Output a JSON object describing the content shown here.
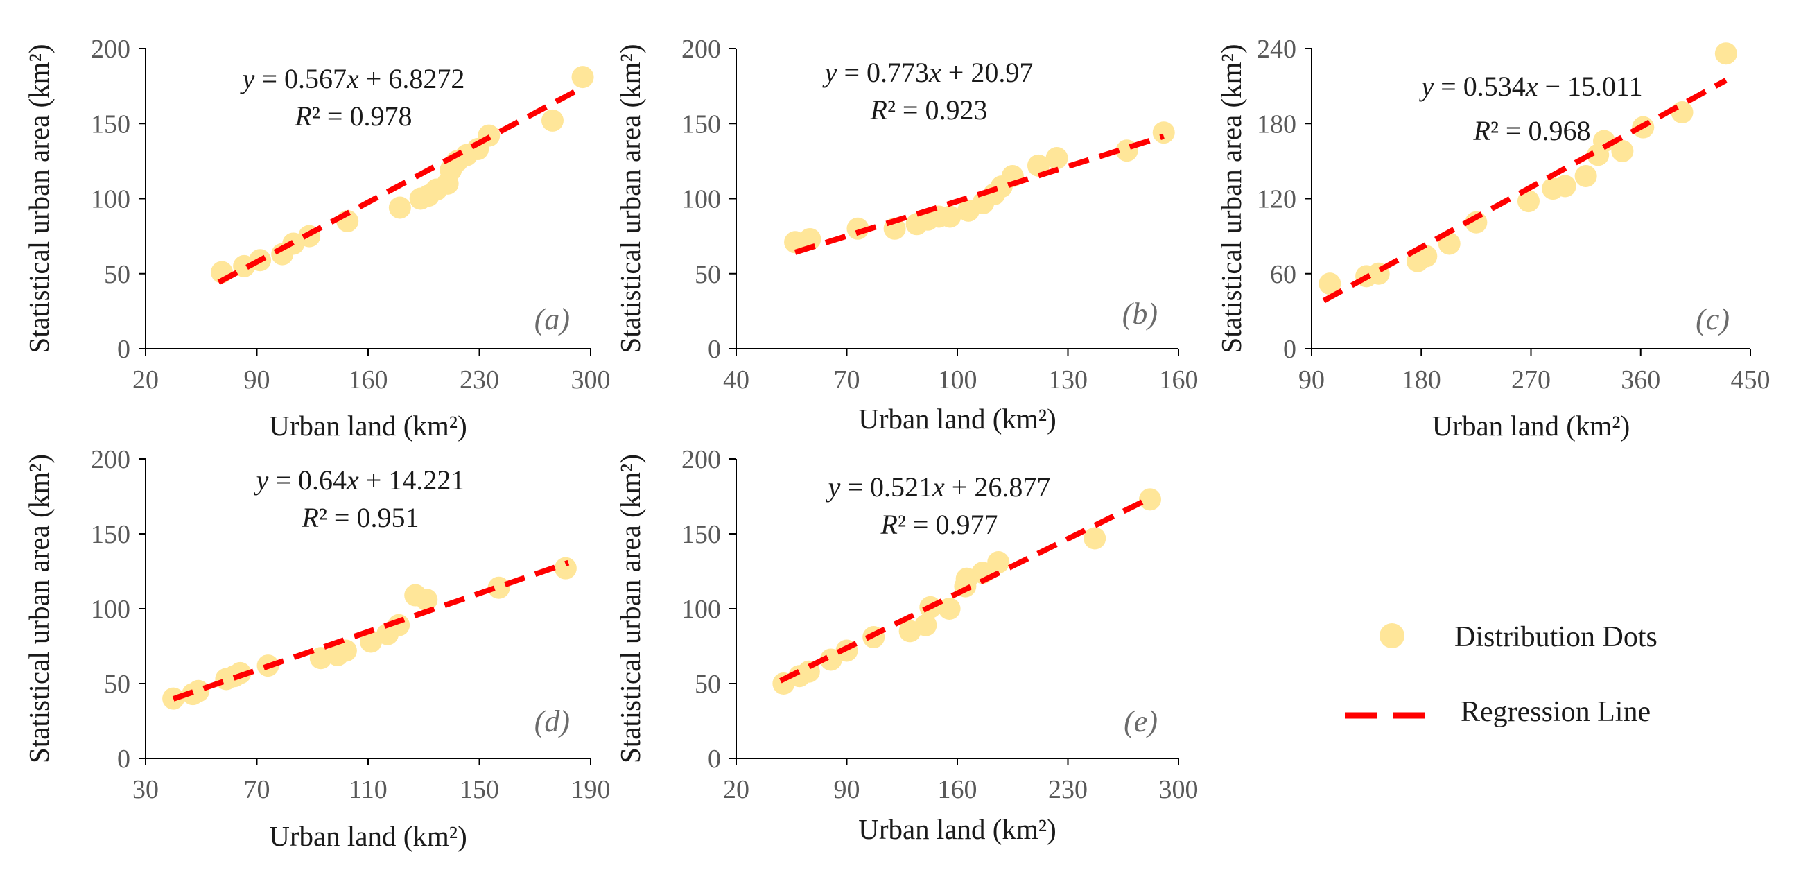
{
  "legend": {
    "dots_label": "Distribution Dots",
    "line_label": "Regression Line"
  },
  "colors": {
    "dot": "#FFE699",
    "line": "#FF0000",
    "axis": "#000000",
    "tick_text": "#595959"
  },
  "chart_data": [
    {
      "type": "scatter",
      "panel": "(a)",
      "equation": "y = 0.567x + 6.8272",
      "r_squared": "R² = 0.978",
      "slope": 0.567,
      "intercept": 6.8272,
      "fit_range": [
        66,
        295
      ],
      "xlabel": "Urban land (km²)",
      "ylabel": "Statistical urban area (km²)",
      "xlim": [
        20,
        300
      ],
      "ylim": [
        0,
        200
      ],
      "xticks": [
        20,
        90,
        160,
        230,
        300
      ],
      "yticks": [
        0,
        50,
        100,
        150,
        200
      ],
      "x": [
        68,
        82,
        92,
        106,
        113,
        123,
        147,
        180,
        193,
        198,
        203,
        210,
        212,
        216,
        222,
        229,
        236,
        276,
        295
      ],
      "y": [
        51,
        55,
        59,
        63,
        70,
        75,
        85,
        94,
        100,
        102,
        106,
        110,
        119,
        125,
        129,
        133,
        142,
        152,
        181
      ]
    },
    {
      "type": "scatter",
      "panel": "(b)",
      "equation": "y = 0.773x + 20.97",
      "r_squared": "R² = 0.923",
      "slope": 0.773,
      "intercept": 20.97,
      "fit_range": [
        56,
        156
      ],
      "xlabel": "Urban land (km²)",
      "ylabel": "Statistical urban area (km²)",
      "xlim": [
        40,
        160
      ],
      "ylim": [
        0,
        200
      ],
      "xticks": [
        40,
        70,
        100,
        130,
        160
      ],
      "yticks": [
        0,
        50,
        100,
        150,
        200
      ],
      "x": [
        56,
        60,
        73,
        83,
        89,
        92,
        95,
        98,
        103,
        107,
        110,
        112,
        115,
        122,
        127,
        146,
        156
      ],
      "y": [
        71,
        73,
        80,
        80,
        83,
        86,
        88,
        88,
        92,
        97,
        103,
        108,
        115,
        122,
        127,
        132,
        144
      ]
    },
    {
      "type": "scatter",
      "panel": "(c)",
      "equation": "y = 0.534x − 15.011",
      "r_squared": "R² = 0.968",
      "slope": 0.534,
      "intercept": -15.011,
      "fit_range": [
        100,
        430
      ],
      "xlabel": "Urban land (km²)",
      "ylabel": "Statistical urban area (km²)",
      "xlim": [
        90,
        450
      ],
      "ylim": [
        0,
        240
      ],
      "xticks": [
        90,
        180,
        270,
        360,
        450
      ],
      "yticks": [
        0,
        60,
        120,
        180,
        240
      ],
      "x": [
        105,
        135,
        145,
        177,
        184,
        203,
        225,
        268,
        288,
        298,
        315,
        325,
        330,
        345,
        362,
        394,
        430
      ],
      "y": [
        52,
        58,
        60,
        70,
        74,
        84,
        101,
        118,
        128,
        130,
        138,
        155,
        166,
        158,
        177,
        189,
        236
      ]
    },
    {
      "type": "scatter",
      "panel": "(d)",
      "equation": "y = 0.64x + 14.221",
      "r_squared": "R² = 0.951",
      "slope": 0.64,
      "intercept": 14.221,
      "fit_range": [
        40,
        182
      ],
      "xlabel": "Urban land (km²)",
      "ylabel": "Statistical urban area (km²)",
      "xlim": [
        30,
        190
      ],
      "ylim": [
        0,
        200
      ],
      "xticks": [
        30,
        70,
        110,
        150,
        190
      ],
      "yticks": [
        0,
        50,
        100,
        150,
        200
      ],
      "x": [
        40,
        47,
        49,
        59,
        62,
        64,
        74,
        93,
        99,
        102,
        111,
        117,
        121,
        127,
        131,
        157,
        181
      ],
      "y": [
        40,
        43,
        45,
        53,
        55,
        57,
        62,
        67,
        69,
        72,
        78,
        83,
        89,
        109,
        106,
        114,
        127
      ]
    },
    {
      "type": "scatter",
      "panel": "(e)",
      "equation": "y = 0.521x + 26.877",
      "r_squared": "R² = 0.977",
      "slope": 0.521,
      "intercept": 26.877,
      "fit_range": [
        48,
        282
      ],
      "xlabel": "Urban land (km²)",
      "ylabel": "Statistical urban area (km²)",
      "xlim": [
        20,
        300
      ],
      "ylim": [
        0,
        200
      ],
      "xticks": [
        20,
        90,
        160,
        230,
        300
      ],
      "yticks": [
        0,
        50,
        100,
        150,
        200
      ],
      "x": [
        50,
        60,
        66,
        80,
        90,
        107,
        130,
        140,
        143,
        155,
        165,
        166,
        176,
        186,
        247,
        282
      ],
      "y": [
        50,
        55,
        58,
        66,
        72,
        81,
        85,
        89,
        101,
        100,
        115,
        120,
        124,
        131,
        147,
        173
      ]
    }
  ]
}
